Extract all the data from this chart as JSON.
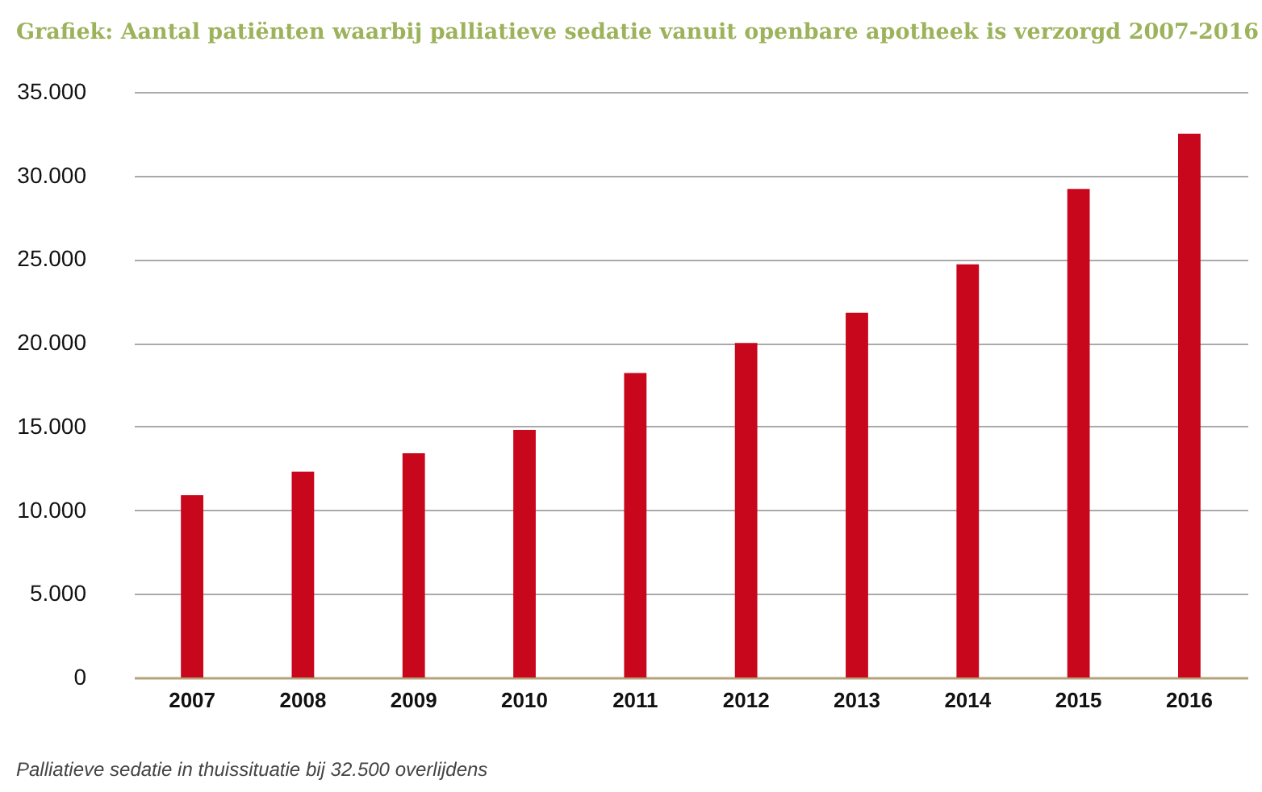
{
  "chart_data": {
    "type": "bar",
    "title": "Grafiek: Aantal patiënten waarbij palliatieve sedatie vanuit openbare apotheek is verzorgd 2007-2016",
    "categories": [
      "2007",
      "2008",
      "2009",
      "2010",
      "2011",
      "2012",
      "2013",
      "2014",
      "2015",
      "2016"
    ],
    "values": [
      10900,
      12300,
      13400,
      14800,
      18200,
      20000,
      21800,
      24700,
      29200,
      32500
    ],
    "color": "#c8061c",
    "ylim": [
      0,
      35000
    ],
    "yticks": [
      {
        "value": 0,
        "label": "0"
      },
      {
        "value": 5000,
        "label": "5.000"
      },
      {
        "value": 10000,
        "label": "10.000"
      },
      {
        "value": 15000,
        "label": "15.000"
      },
      {
        "value": 20000,
        "label": "20.000"
      },
      {
        "value": 25000,
        "label": "25.000"
      },
      {
        "value": 30000,
        "label": "30.000"
      },
      {
        "value": 35000,
        "label": "35.000"
      }
    ],
    "grid": "y",
    "annotations": [
      "Palliatieve sedatie in thuissituatie bij 32.500 overlijdens"
    ]
  }
}
